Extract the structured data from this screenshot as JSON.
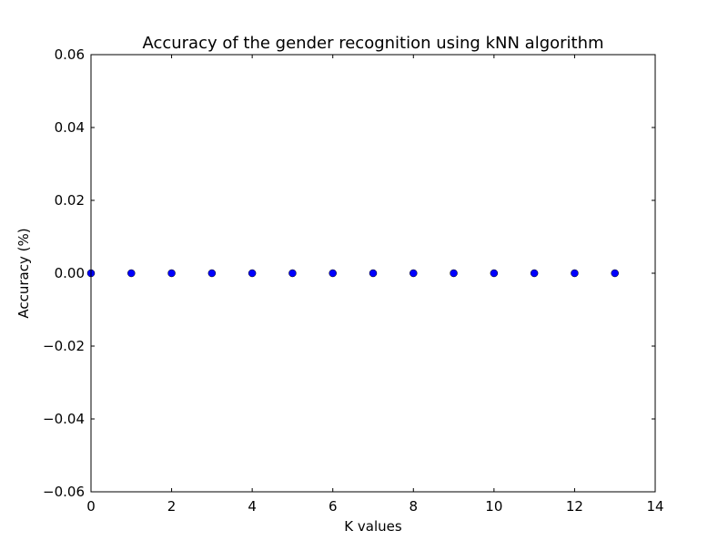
{
  "chart_data": {
    "type": "scatter",
    "title": "Accuracy of the gender recognition using kNN algorithm",
    "xlabel": "K values",
    "ylabel": "Accuracy (%)",
    "xlim": [
      0,
      14
    ],
    "ylim": [
      -0.06,
      0.06
    ],
    "xticks": [
      0,
      2,
      4,
      6,
      8,
      10,
      12,
      14
    ],
    "xtick_labels": [
      "0",
      "2",
      "4",
      "6",
      "8",
      "10",
      "12",
      "14"
    ],
    "yticks": [
      -0.06,
      -0.04,
      -0.02,
      0.0,
      0.02,
      0.04,
      0.06
    ],
    "ytick_labels": [
      "−0.06",
      "−0.04",
      "−0.02",
      "0.00",
      "0.02",
      "0.04",
      "0.06"
    ],
    "grid": false,
    "series": [
      {
        "color": "#0000ff",
        "x": [
          0,
          1,
          2,
          3,
          4,
          5,
          6,
          7,
          8,
          9,
          10,
          11,
          12,
          13
        ],
        "y": [
          0,
          0,
          0,
          0,
          0,
          0,
          0,
          0,
          0,
          0,
          0,
          0,
          0,
          0
        ]
      }
    ]
  }
}
